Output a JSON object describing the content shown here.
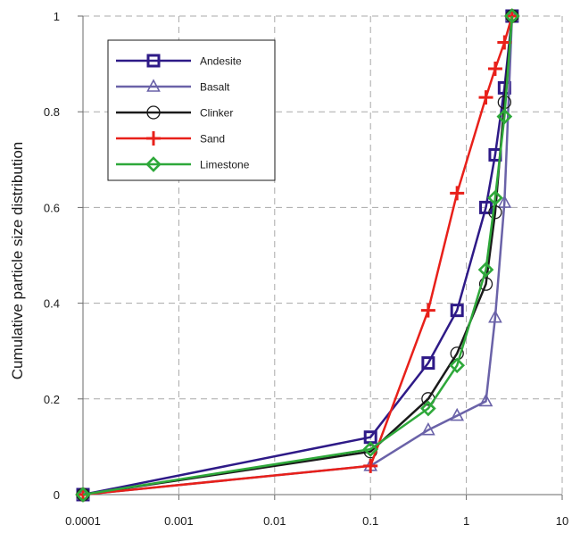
{
  "chart_data": {
    "type": "line",
    "title": "",
    "xlabel": "",
    "ylabel": "Cumulative particle size distribution",
    "xscale": "log",
    "xlim": [
      0.0001,
      10
    ],
    "ylim": [
      0,
      1
    ],
    "xticks": [
      0.0001,
      0.001,
      0.01,
      0.1,
      1,
      10
    ],
    "xtick_labels": [
      "0.0001",
      "0.001",
      "0.01",
      "0.1",
      "1",
      "10"
    ],
    "yticks": [
      0,
      0.2,
      0.4,
      0.6,
      0.8,
      1
    ],
    "ytick_labels": [
      "0",
      "0.2",
      "0.4",
      "0.6",
      "0.8",
      "1"
    ],
    "grid": true,
    "legend_position": "top-left",
    "series": [
      {
        "name": "Andesite",
        "color": "#2e1a87",
        "marker": "square",
        "x": [
          0.0001,
          0.1,
          0.4,
          0.8,
          1.6,
          2.0,
          2.5,
          3.0
        ],
        "y": [
          0,
          0.12,
          0.275,
          0.385,
          0.6,
          0.71,
          0.85,
          1.0
        ]
      },
      {
        "name": "Basalt",
        "color": "#6a62a8",
        "marker": "triangle",
        "x": [
          0.0001,
          0.1,
          0.4,
          0.8,
          1.6,
          2.0,
          2.5,
          3.0
        ],
        "y": [
          0,
          0.06,
          0.135,
          0.165,
          0.195,
          0.37,
          0.61,
          1.0
        ]
      },
      {
        "name": "Clinker",
        "color": "#1a1a1a",
        "marker": "circle",
        "x": [
          0.0001,
          0.1,
          0.4,
          0.8,
          1.6,
          2.0,
          2.5,
          3.0
        ],
        "y": [
          0,
          0.09,
          0.2,
          0.295,
          0.44,
          0.59,
          0.82,
          1.0
        ]
      },
      {
        "name": "Sand",
        "color": "#e8201a",
        "marker": "plus",
        "x": [
          0.0001,
          0.1,
          0.4,
          0.8,
          1.6,
          2.0,
          2.5,
          3.0
        ],
        "y": [
          0,
          0.06,
          0.385,
          0.63,
          0.83,
          0.89,
          0.945,
          1.0
        ]
      },
      {
        "name": "Limestone",
        "color": "#2ea83a",
        "marker": "diamond",
        "x": [
          0.0001,
          0.1,
          0.4,
          0.8,
          1.6,
          2.0,
          2.5,
          3.0
        ],
        "y": [
          0,
          0.095,
          0.18,
          0.27,
          0.47,
          0.62,
          0.79,
          1.0
        ]
      }
    ]
  }
}
